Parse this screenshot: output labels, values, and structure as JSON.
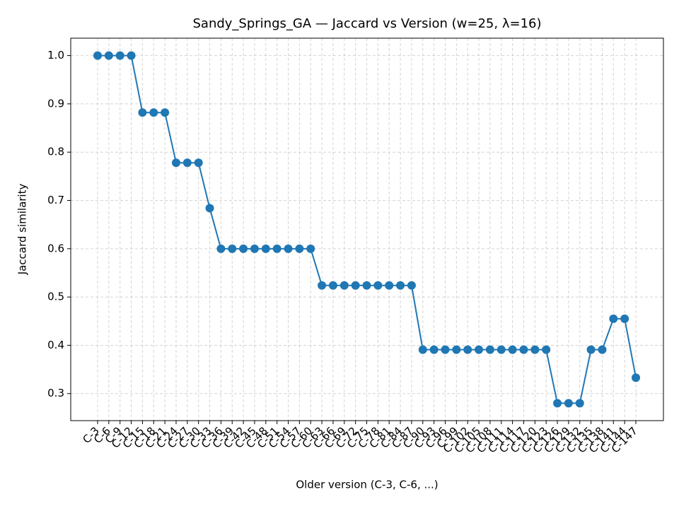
{
  "chart_data": {
    "type": "line",
    "title": "Sandy_Springs_GA — Jaccard vs Version (w=25, λ=16)",
    "x_label": "Older version (C-3, C-6, ...)",
    "y_label": "Jaccard similarity",
    "categories": [
      "C-3",
      "C-6",
      "C-9",
      "C-12",
      "C-15",
      "C-18",
      "C-21",
      "C-24",
      "C-27",
      "C-30",
      "C-33",
      "C-36",
      "C-39",
      "C-42",
      "C-45",
      "C-48",
      "C-51",
      "C-54",
      "C-57",
      "C-60",
      "C-63",
      "C-66",
      "C-69",
      "C-72",
      "C-75",
      "C-78",
      "C-81",
      "C-84",
      "C-87",
      "C-90",
      "C-93",
      "C-96",
      "C-99",
      "C-102",
      "C-105",
      "C-108",
      "C-111",
      "C-114",
      "C-117",
      "C-120",
      "C-123",
      "C-126",
      "C-129",
      "C-132",
      "C-135",
      "C-138",
      "C-141",
      "C-144",
      "C-147"
    ],
    "series": [
      {
        "name": "Jaccard",
        "color": "#1f77b4",
        "values": [
          1.0,
          1.0,
          1.0,
          1.0,
          0.882,
          0.882,
          0.882,
          0.778,
          0.778,
          0.778,
          0.684,
          0.6,
          0.6,
          0.6,
          0.6,
          0.6,
          0.6,
          0.6,
          0.6,
          0.6,
          0.524,
          0.524,
          0.524,
          0.524,
          0.524,
          0.524,
          0.524,
          0.524,
          0.524,
          0.391,
          0.391,
          0.391,
          0.391,
          0.391,
          0.391,
          0.391,
          0.391,
          0.391,
          0.391,
          0.391,
          0.391,
          0.28,
          0.28,
          0.28,
          0.391,
          0.391,
          0.455,
          0.455,
          0.333
        ]
      }
    ],
    "ylim": [
      0.244,
      1.036
    ],
    "yticks": [
      0.3,
      0.4,
      0.5,
      0.6,
      0.7,
      0.8,
      0.9,
      {
        "value": 1.0,
        "label": "1.0"
      }
    ],
    "grid": true
  }
}
